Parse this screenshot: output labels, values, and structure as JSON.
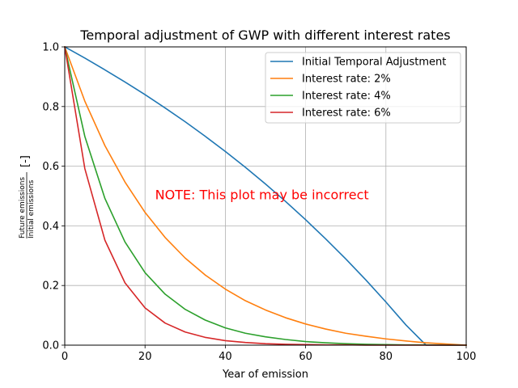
{
  "chart_data": {
    "type": "line",
    "title": "Temporal adjustment of GWP with different interest rates",
    "xlabel": "Year of emission",
    "ylabel": {
      "numerator": "Future emissions",
      "denominator": "Initial emissions",
      "unit": "[-]"
    },
    "xlim": [
      0,
      100
    ],
    "ylim": [
      0,
      1
    ],
    "xticks": [
      0,
      20,
      40,
      60,
      80,
      100
    ],
    "yticks": [
      0.0,
      0.2,
      0.4,
      0.6,
      0.8,
      1.0
    ],
    "xtick_labels": [
      "0",
      "20",
      "40",
      "60",
      "80",
      "100"
    ],
    "ytick_labels": [
      "0.0",
      "0.2",
      "0.4",
      "0.6",
      "0.8",
      "1.0"
    ],
    "grid": true,
    "legend_position": "top-right",
    "annotation": {
      "text": "NOTE: This plot may be incorrect",
      "color": "#ff0000",
      "x": 22.5,
      "y": 0.5
    },
    "x": [
      0,
      5,
      10,
      15,
      20,
      25,
      30,
      35,
      40,
      45,
      50,
      55,
      60,
      65,
      70,
      75,
      80,
      85,
      90,
      95,
      100
    ],
    "series": [
      {
        "name": "Initial Temporal Adjustment",
        "color": "#1f77b4",
        "values": [
          1.0,
          0.9625,
          0.9231,
          0.8824,
          0.8399,
          0.7953,
          0.749,
          0.7001,
          0.6493,
          0.5961,
          0.5402,
          0.4819,
          0.4205,
          0.3563,
          0.2891,
          0.2186,
          0.1446,
          0.0676,
          0.0,
          0.0,
          0.0
        ]
      },
      {
        "name": "Interest rate: 2%",
        "color": "#ff7f0e",
        "values": [
          1.0,
          0.818,
          0.669,
          0.547,
          0.445,
          0.361,
          0.292,
          0.235,
          0.188,
          0.149,
          0.118,
          0.092,
          0.071,
          0.054,
          0.04,
          0.03,
          0.021,
          0.014,
          0.008,
          0.004,
          0.0
        ]
      },
      {
        "name": "Interest rate: 4%",
        "color": "#2ca02c",
        "values": [
          1.0,
          0.7,
          0.492,
          0.346,
          0.243,
          0.171,
          0.12,
          0.084,
          0.058,
          0.04,
          0.028,
          0.019,
          0.012,
          0.008,
          0.005,
          0.003,
          0.002,
          0.001,
          0.001,
          0.0,
          0.0
        ]
      },
      {
        "name": "Interest rate: 6%",
        "color": "#d62728",
        "values": [
          1.0,
          0.592,
          0.352,
          0.209,
          0.125,
          0.074,
          0.044,
          0.026,
          0.015,
          0.009,
          0.005,
          0.003,
          0.002,
          0.001,
          0.001,
          0.0,
          0.0,
          0.0,
          0.0,
          0.0,
          0.0
        ]
      }
    ]
  }
}
